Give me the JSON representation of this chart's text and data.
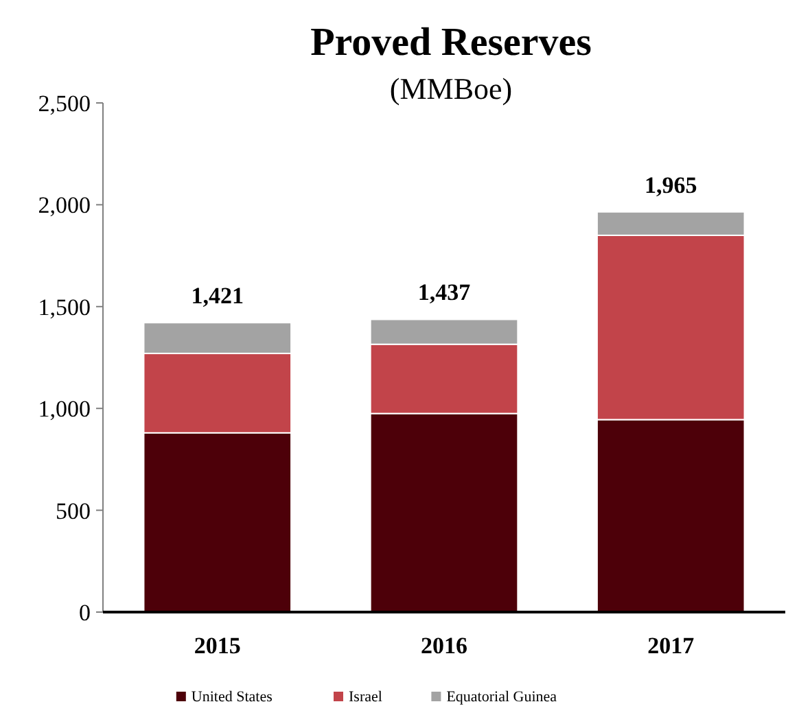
{
  "chart_data": {
    "type": "bar",
    "title": "Proved Reserves",
    "subtitle": "(MMBoe)",
    "categories": [
      "2015",
      "2016",
      "2017"
    ],
    "stacked": true,
    "series": [
      {
        "name": "United States",
        "color": "#4d0009",
        "values": [
          880,
          975,
          945
        ]
      },
      {
        "name": "Israel",
        "color": "#c2444a",
        "values": [
          390,
          340,
          905
        ]
      },
      {
        "name": "Equatorial Guinea",
        "color": "#a3a3a3",
        "values": [
          151,
          122,
          115
        ]
      }
    ],
    "totals": [
      "1,421",
      "1,437",
      "1,965"
    ],
    "ylim": [
      0,
      2500
    ],
    "yticks": [
      0,
      500,
      {
        "value": 1000,
        "label": "1,000"
      },
      {
        "value": 1500,
        "label": "1,500"
      },
      {
        "value": 2000,
        "label": "2,000"
      },
      {
        "value": 2500,
        "label": "2,500"
      }
    ],
    "grid": false,
    "legend": "bottom"
  }
}
